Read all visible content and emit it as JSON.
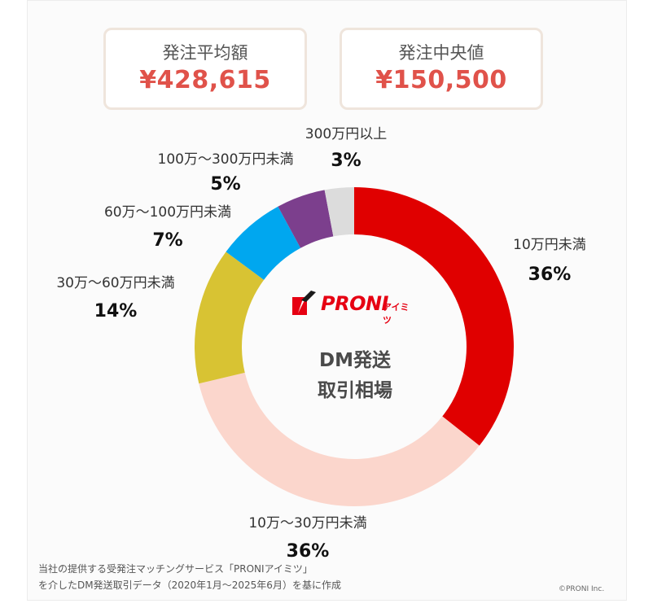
{
  "summary": {
    "avg_label": "発注平均額",
    "avg_value": "¥428,615",
    "median_label": "発注中央値",
    "median_value": "¥150,500"
  },
  "logo": {
    "name": "PRONI",
    "suffix": "アイミツ"
  },
  "center": {
    "line1": "DM発送",
    "line2": "取引相場"
  },
  "chart_data": {
    "type": "pie",
    "donut": true,
    "start": "top",
    "direction": "clockwise",
    "categories": [
      "10万円未満",
      "10万～30万円未満",
      "30万～60万円未満",
      "60万～100万円未満",
      "100万～300万円未満",
      "300万円以上"
    ],
    "values": [
      36,
      36,
      14,
      7,
      5,
      3
    ],
    "value_labels": [
      "36%",
      "36%",
      "14%",
      "7%",
      "5%",
      "3%"
    ],
    "colors": [
      "#e00000",
      "#fbd6cc",
      "#d8c333",
      "#00a7ef",
      "#7c3f8d",
      "#dcdcdc"
    ]
  },
  "footnote": {
    "line1": "当社の提供する受発注マッチングサービス「PRONIアイミツ」",
    "line2": "を介したDM発送取引データ（2020年1月～2025年6月）を基に作成"
  },
  "copyright": "©PRONI Inc."
}
